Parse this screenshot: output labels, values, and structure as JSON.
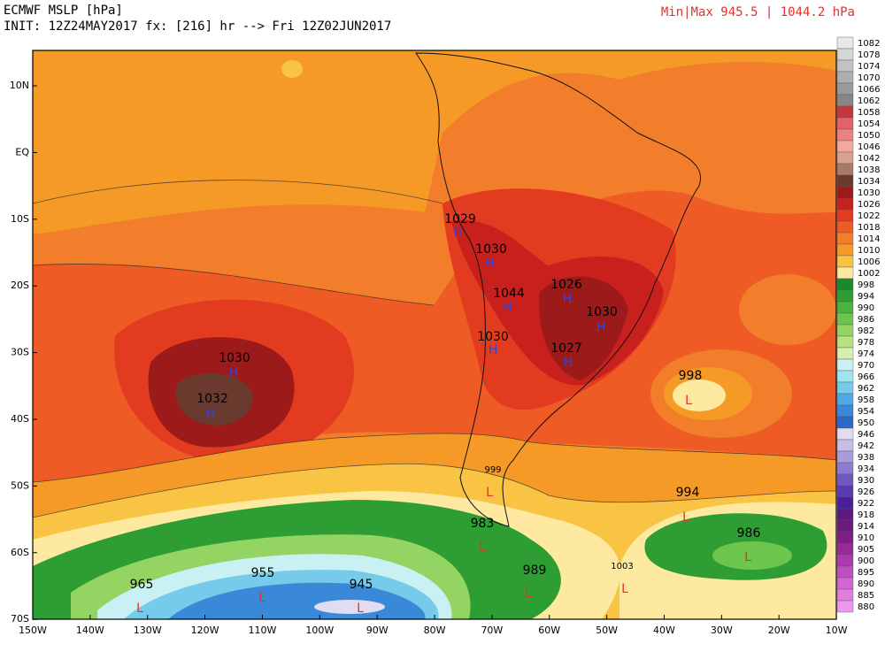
{
  "header": {
    "title": "ECMWF MSLP [hPa]",
    "init": "INIT: 12Z24MAY2017 fx: [216] hr --> Fri 12Z02JUN2017",
    "minmax": "Min|Max 945.5 | 1044.2 hPa"
  },
  "lat_labels": [
    "10N",
    "EQ",
    "10S",
    "20S",
    "30S",
    "40S",
    "50S",
    "60S",
    "70S"
  ],
  "lon_labels": [
    "150W",
    "140W",
    "130W",
    "120W",
    "110W",
    "100W",
    "90W",
    "80W",
    "70W",
    "60W",
    "50W",
    "40W",
    "30W",
    "20W",
    "10W"
  ],
  "colorbar": {
    "levels": [
      1082,
      1078,
      1074,
      1070,
      1066,
      1062,
      1058,
      1054,
      1050,
      1046,
      1042,
      1038,
      1034,
      1030,
      1026,
      1022,
      1018,
      1014,
      1010,
      1006,
      1002,
      998,
      994,
      990,
      986,
      982,
      978,
      974,
      970,
      966,
      962,
      958,
      954,
      950,
      946,
      942,
      938,
      934,
      930,
      926,
      922,
      918,
      914,
      910,
      905,
      900,
      895,
      890,
      885,
      880
    ],
    "colors": [
      "#e8e8e8",
      "#d6d6d6",
      "#c2c2c2",
      "#aeaeae",
      "#9a9a9a",
      "#868686",
      "#c4383c",
      "#e4606a",
      "#ef8080",
      "#f2a89c",
      "#d9a08c",
      "#a87967",
      "#6b3a2e",
      "#9c1a1a",
      "#c8201d",
      "#e33b1f",
      "#ef5b25",
      "#f27d2b",
      "#f59a27",
      "#f9c443",
      "#fdeaa0",
      "#1a8a2d",
      "#2e9e34",
      "#4cb33f",
      "#6dc54e",
      "#94d463",
      "#b9e27e",
      "#d8efad",
      "#c9f0f2",
      "#a2e4ee",
      "#77cbea",
      "#52a8e2",
      "#3a88d8",
      "#2f66c8",
      "#e0dcf2",
      "#c6bde8",
      "#a99cdc",
      "#8c7bd0",
      "#6f58c0",
      "#5a3ab0",
      "#4c1d9a",
      "#5a1a80",
      "#6b1a7a",
      "#7e1d85",
      "#962a98",
      "#ab3aad",
      "#c04ec0",
      "#d466d2",
      "#e07ee0",
      "#ec98ec"
    ]
  },
  "centers": [
    {
      "label": "1029",
      "marker": "H"
    },
    {
      "label": "1030",
      "marker": "H"
    },
    {
      "label": "1044",
      "marker": "H"
    },
    {
      "label": "1026",
      "marker": "H"
    },
    {
      "label": "1030",
      "marker": "H"
    },
    {
      "label": "1030",
      "marker": "H"
    },
    {
      "label": "1027",
      "marker": "H"
    },
    {
      "label": "1030",
      "marker": "H"
    },
    {
      "label": "1032",
      "marker": "H"
    },
    {
      "label": "998",
      "marker": "L"
    },
    {
      "label": "999",
      "marker": "L"
    },
    {
      "label": "994",
      "marker": "L"
    },
    {
      "label": "983",
      "marker": "L"
    },
    {
      "label": "986",
      "marker": "L"
    },
    {
      "label": "989",
      "marker": "L"
    },
    {
      "label": "1003",
      "marker": "L"
    },
    {
      "label": "965",
      "marker": "L"
    },
    {
      "label": "955",
      "marker": "L"
    },
    {
      "label": "945",
      "marker": "L"
    }
  ]
}
